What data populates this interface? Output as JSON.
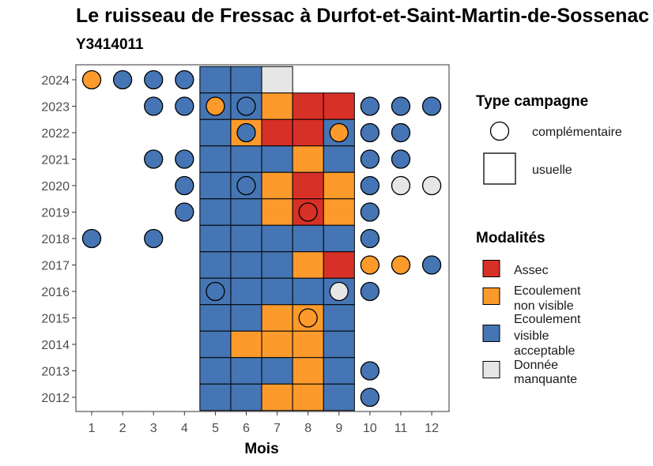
{
  "header": {
    "title": "Le ruisseau de Fressac à Durfot-et-Saint-Martin-de-Sossenac",
    "subtitle": "Y3414011"
  },
  "chart_data": {
    "type": "heatmap",
    "xlabel": "Mois",
    "ylabel": "",
    "x_ticks": [
      "1",
      "2",
      "3",
      "4",
      "5",
      "6",
      "7",
      "8",
      "9",
      "10",
      "11",
      "12"
    ],
    "y_ticks": [
      "2024",
      "2023",
      "2022",
      "2021",
      "2020",
      "2019",
      "2018",
      "2017",
      "2016",
      "2015",
      "2014",
      "2013",
      "2012"
    ],
    "xlim": [
      1,
      12
    ],
    "ylim": [
      2012,
      2024
    ],
    "grid": false,
    "legend_position": "right",
    "colors": {
      "Assec": "#d73027",
      "Ecoulement non visible": "#fd9a2c",
      "Ecoulement visible acceptable": "#4575b4",
      "Donnée manquante": "#e6e6e6"
    },
    "legend": {
      "type_title": "Type campagne",
      "type_items": [
        {
          "key": "complementaire",
          "label": "complémentaire",
          "shape": "circle"
        },
        {
          "key": "usuelle",
          "label": "usuelle",
          "shape": "square"
        }
      ],
      "modalites_title": "Modalités",
      "modalites_items": [
        {
          "key": "Assec",
          "lines": [
            "Assec"
          ]
        },
        {
          "key": "Ecoulement non visible",
          "lines": [
            "Ecoulement",
            "non visible"
          ]
        },
        {
          "key": "Ecoulement visible acceptable",
          "lines": [
            "Ecoulement",
            "visible",
            "acceptable"
          ]
        },
        {
          "key": "Donnée manquante",
          "lines": [
            "Donnée",
            "manquante"
          ]
        }
      ]
    },
    "usuelle": [
      {
        "year": 2024,
        "month": 5,
        "modalite": "Ecoulement visible acceptable"
      },
      {
        "year": 2024,
        "month": 6,
        "modalite": "Ecoulement visible acceptable"
      },
      {
        "year": 2024,
        "month": 7,
        "modalite": "Donnée manquante"
      },
      {
        "year": 2023,
        "month": 5,
        "modalite": "Ecoulement visible acceptable"
      },
      {
        "year": 2023,
        "month": 6,
        "modalite": "Ecoulement visible acceptable"
      },
      {
        "year": 2023,
        "month": 7,
        "modalite": "Ecoulement non visible"
      },
      {
        "year": 2023,
        "month": 8,
        "modalite": "Assec"
      },
      {
        "year": 2023,
        "month": 9,
        "modalite": "Assec"
      },
      {
        "year": 2022,
        "month": 5,
        "modalite": "Ecoulement visible acceptable"
      },
      {
        "year": 2022,
        "month": 6,
        "modalite": "Ecoulement non visible"
      },
      {
        "year": 2022,
        "month": 7,
        "modalite": "Assec"
      },
      {
        "year": 2022,
        "month": 8,
        "modalite": "Assec"
      },
      {
        "year": 2022,
        "month": 9,
        "modalite": "Ecoulement visible acceptable"
      },
      {
        "year": 2021,
        "month": 5,
        "modalite": "Ecoulement visible acceptable"
      },
      {
        "year": 2021,
        "month": 6,
        "modalite": "Ecoulement visible acceptable"
      },
      {
        "year": 2021,
        "month": 7,
        "modalite": "Ecoulement visible acceptable"
      },
      {
        "year": 2021,
        "month": 8,
        "modalite": "Ecoulement non visible"
      },
      {
        "year": 2021,
        "month": 9,
        "modalite": "Ecoulement visible acceptable"
      },
      {
        "year": 2020,
        "month": 5,
        "modalite": "Ecoulement visible acceptable"
      },
      {
        "year": 2020,
        "month": 6,
        "modalite": "Ecoulement visible acceptable"
      },
      {
        "year": 2020,
        "month": 7,
        "modalite": "Ecoulement non visible"
      },
      {
        "year": 2020,
        "month": 8,
        "modalite": "Assec"
      },
      {
        "year": 2020,
        "month": 9,
        "modalite": "Ecoulement non visible"
      },
      {
        "year": 2019,
        "month": 5,
        "modalite": "Ecoulement visible acceptable"
      },
      {
        "year": 2019,
        "month": 6,
        "modalite": "Ecoulement visible acceptable"
      },
      {
        "year": 2019,
        "month": 7,
        "modalite": "Ecoulement non visible"
      },
      {
        "year": 2019,
        "month": 8,
        "modalite": "Assec"
      },
      {
        "year": 2019,
        "month": 9,
        "modalite": "Ecoulement non visible"
      },
      {
        "year": 2018,
        "month": 5,
        "modalite": "Ecoulement visible acceptable"
      },
      {
        "year": 2018,
        "month": 6,
        "modalite": "Ecoulement visible acceptable"
      },
      {
        "year": 2018,
        "month": 7,
        "modalite": "Ecoulement visible acceptable"
      },
      {
        "year": 2018,
        "month": 8,
        "modalite": "Ecoulement visible acceptable"
      },
      {
        "year": 2018,
        "month": 9,
        "modalite": "Ecoulement visible acceptable"
      },
      {
        "year": 2017,
        "month": 5,
        "modalite": "Ecoulement visible acceptable"
      },
      {
        "year": 2017,
        "month": 6,
        "modalite": "Ecoulement visible acceptable"
      },
      {
        "year": 2017,
        "month": 7,
        "modalite": "Ecoulement visible acceptable"
      },
      {
        "year": 2017,
        "month": 8,
        "modalite": "Ecoulement non visible"
      },
      {
        "year": 2017,
        "month": 9,
        "modalite": "Assec"
      },
      {
        "year": 2016,
        "month": 5,
        "modalite": "Ecoulement visible acceptable"
      },
      {
        "year": 2016,
        "month": 6,
        "modalite": "Ecoulement visible acceptable"
      },
      {
        "year": 2016,
        "month": 7,
        "modalite": "Ecoulement visible acceptable"
      },
      {
        "year": 2016,
        "month": 8,
        "modalite": "Ecoulement visible acceptable"
      },
      {
        "year": 2016,
        "month": 9,
        "modalite": "Ecoulement visible acceptable"
      },
      {
        "year": 2015,
        "month": 5,
        "modalite": "Ecoulement visible acceptable"
      },
      {
        "year": 2015,
        "month": 6,
        "modalite": "Ecoulement visible acceptable"
      },
      {
        "year": 2015,
        "month": 7,
        "modalite": "Ecoulement non visible"
      },
      {
        "year": 2015,
        "month": 8,
        "modalite": "Ecoulement non visible"
      },
      {
        "year": 2015,
        "month": 9,
        "modalite": "Ecoulement visible acceptable"
      },
      {
        "year": 2014,
        "month": 5,
        "modalite": "Ecoulement visible acceptable"
      },
      {
        "year": 2014,
        "month": 6,
        "modalite": "Ecoulement non visible"
      },
      {
        "year": 2014,
        "month": 7,
        "modalite": "Ecoulement non visible"
      },
      {
        "year": 2014,
        "month": 8,
        "modalite": "Ecoulement non visible"
      },
      {
        "year": 2014,
        "month": 9,
        "modalite": "Ecoulement visible acceptable"
      },
      {
        "year": 2013,
        "month": 5,
        "modalite": "Ecoulement visible acceptable"
      },
      {
        "year": 2013,
        "month": 6,
        "modalite": "Ecoulement visible acceptable"
      },
      {
        "year": 2013,
        "month": 7,
        "modalite": "Ecoulement visible acceptable"
      },
      {
        "year": 2013,
        "month": 8,
        "modalite": "Ecoulement non visible"
      },
      {
        "year": 2013,
        "month": 9,
        "modalite": "Ecoulement visible acceptable"
      },
      {
        "year": 2012,
        "month": 5,
        "modalite": "Ecoulement visible acceptable"
      },
      {
        "year": 2012,
        "month": 6,
        "modalite": "Ecoulement visible acceptable"
      },
      {
        "year": 2012,
        "month": 7,
        "modalite": "Ecoulement non visible"
      },
      {
        "year": 2012,
        "month": 8,
        "modalite": "Ecoulement non visible"
      },
      {
        "year": 2012,
        "month": 9,
        "modalite": "Ecoulement visible acceptable"
      }
    ],
    "complementaire": [
      {
        "year": 2024,
        "month": 1,
        "modalite": "Ecoulement non visible"
      },
      {
        "year": 2024,
        "month": 2,
        "modalite": "Ecoulement visible acceptable"
      },
      {
        "year": 2024,
        "month": 3,
        "modalite": "Ecoulement visible acceptable"
      },
      {
        "year": 2024,
        "month": 4,
        "modalite": "Ecoulement visible acceptable"
      },
      {
        "year": 2023,
        "month": 3,
        "modalite": "Ecoulement visible acceptable"
      },
      {
        "year": 2023,
        "month": 4,
        "modalite": "Ecoulement visible acceptable"
      },
      {
        "year": 2023,
        "month": 5,
        "modalite": "Ecoulement non visible"
      },
      {
        "year": 2023,
        "month": 6,
        "modalite": "Ecoulement visible acceptable"
      },
      {
        "year": 2023,
        "month": 10,
        "modalite": "Ecoulement visible acceptable"
      },
      {
        "year": 2023,
        "month": 11,
        "modalite": "Ecoulement visible acceptable"
      },
      {
        "year": 2023,
        "month": 12,
        "modalite": "Ecoulement visible acceptable"
      },
      {
        "year": 2022,
        "month": 6,
        "modalite": "Ecoulement visible acceptable"
      },
      {
        "year": 2022,
        "month": 9,
        "modalite": "Ecoulement non visible"
      },
      {
        "year": 2022,
        "month": 10,
        "modalite": "Ecoulement visible acceptable"
      },
      {
        "year": 2022,
        "month": 11,
        "modalite": "Ecoulement visible acceptable"
      },
      {
        "year": 2021,
        "month": 3,
        "modalite": "Ecoulement visible acceptable"
      },
      {
        "year": 2021,
        "month": 4,
        "modalite": "Ecoulement visible acceptable"
      },
      {
        "year": 2021,
        "month": 10,
        "modalite": "Ecoulement visible acceptable"
      },
      {
        "year": 2021,
        "month": 11,
        "modalite": "Ecoulement visible acceptable"
      },
      {
        "year": 2020,
        "month": 4,
        "modalite": "Ecoulement visible acceptable"
      },
      {
        "year": 2020,
        "month": 6,
        "modalite": "Ecoulement visible acceptable"
      },
      {
        "year": 2020,
        "month": 10,
        "modalite": "Ecoulement visible acceptable"
      },
      {
        "year": 2020,
        "month": 11,
        "modalite": "Donnée manquante"
      },
      {
        "year": 2020,
        "month": 12,
        "modalite": "Donnée manquante"
      },
      {
        "year": 2019,
        "month": 4,
        "modalite": "Ecoulement visible acceptable"
      },
      {
        "year": 2019,
        "month": 8,
        "modalite": "Assec"
      },
      {
        "year": 2019,
        "month": 10,
        "modalite": "Ecoulement visible acceptable"
      },
      {
        "year": 2018,
        "month": 1,
        "modalite": "Ecoulement visible acceptable"
      },
      {
        "year": 2018,
        "month": 3,
        "modalite": "Ecoulement visible acceptable"
      },
      {
        "year": 2018,
        "month": 10,
        "modalite": "Ecoulement visible acceptable"
      },
      {
        "year": 2017,
        "month": 10,
        "modalite": "Ecoulement non visible"
      },
      {
        "year": 2017,
        "month": 11,
        "modalite": "Ecoulement non visible"
      },
      {
        "year": 2017,
        "month": 12,
        "modalite": "Ecoulement visible acceptable"
      },
      {
        "year": 2016,
        "month": 5,
        "modalite": "Ecoulement visible acceptable"
      },
      {
        "year": 2016,
        "month": 9,
        "modalite": "Donnée manquante"
      },
      {
        "year": 2016,
        "month": 10,
        "modalite": "Ecoulement visible acceptable"
      },
      {
        "year": 2015,
        "month": 8,
        "modalite": "Ecoulement non visible"
      },
      {
        "year": 2013,
        "month": 10,
        "modalite": "Ecoulement visible acceptable"
      },
      {
        "year": 2012,
        "month": 10,
        "modalite": "Ecoulement visible acceptable"
      }
    ]
  }
}
